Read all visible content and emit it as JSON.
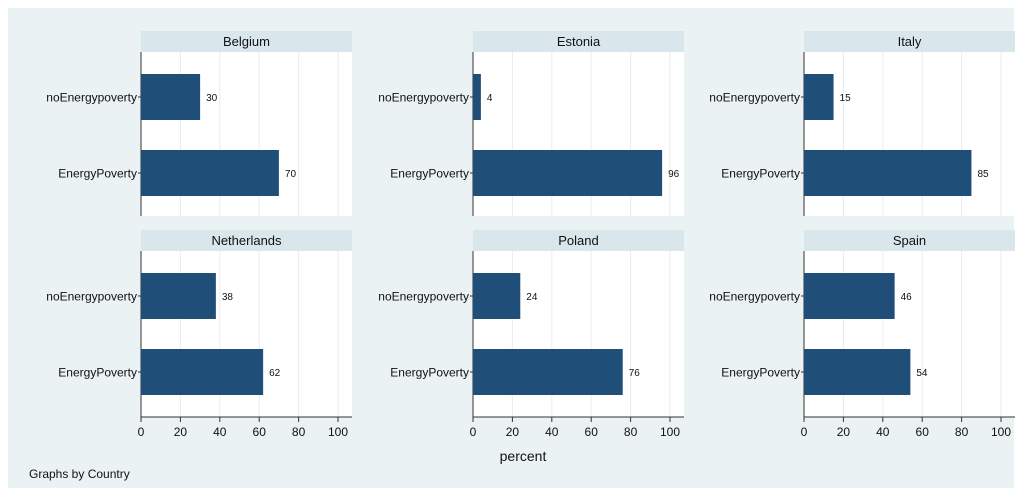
{
  "chart_data": {
    "type": "bar",
    "orientation": "horizontal",
    "note": "Graphs by Country",
    "xlabel": "percent",
    "xlim": [
      0,
      100
    ],
    "xticks": [
      0,
      20,
      40,
      60,
      80,
      100
    ],
    "categories": [
      "noEnergypoverty",
      "EnergyPoverty"
    ],
    "bar_color": "#1f4e79",
    "strip_color": "#d9e6ec",
    "panels": [
      {
        "title": "Belgium",
        "values": [
          30,
          70
        ]
      },
      {
        "title": "Estonia",
        "values": [
          4,
          96
        ]
      },
      {
        "title": "Italy",
        "values": [
          15,
          85
        ]
      },
      {
        "title": "Netherlands",
        "values": [
          38,
          62
        ]
      },
      {
        "title": "Poland",
        "values": [
          24,
          76
        ]
      },
      {
        "title": "Spain",
        "values": [
          46,
          54
        ]
      }
    ]
  }
}
